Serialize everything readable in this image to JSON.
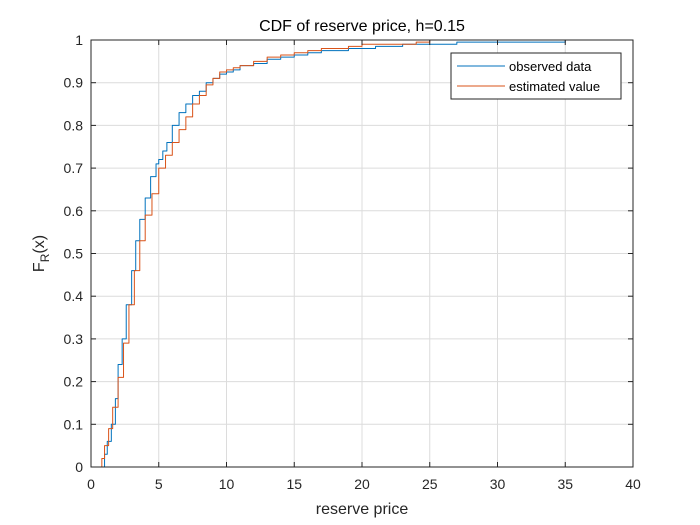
{
  "chart_data": {
    "type": "line",
    "title": "CDF of reserve price, h=0.15",
    "xlabel": "reserve price",
    "ylabel": "F",
    "ylabel_sub": "R",
    "ylabel_arg": "(x)",
    "xlim": [
      0,
      40
    ],
    "ylim": [
      0,
      1
    ],
    "xticks": [
      "0",
      "5",
      "10",
      "15",
      "20",
      "25",
      "30",
      "35",
      "40"
    ],
    "yticks": [
      "0",
      "0.1",
      "0.2",
      "0.3",
      "0.4",
      "0.5",
      "0.6",
      "0.7",
      "0.8",
      "0.9",
      "1"
    ],
    "grid": true,
    "legend_position": "top-right",
    "series": [
      {
        "name": "observed data",
        "color": "#0072BD",
        "x": [
          0.3,
          0.8,
          1.0,
          1.2,
          1.5,
          1.8,
          2.0,
          2.3,
          2.6,
          3.0,
          3.3,
          3.6,
          4.0,
          4.4,
          4.8,
          5.0,
          5.3,
          5.6,
          6.0,
          6.5,
          7.0,
          7.5,
          8.0,
          8.5,
          9.0,
          9.5,
          10.0,
          10.5,
          11.0,
          12.0,
          13.0,
          14.0,
          15.0,
          16.0,
          17.0,
          18.0,
          19.0,
          20.0,
          21.0,
          22.0,
          23.0,
          24.0,
          25.0,
          27.0,
          30.0,
          32.0,
          35.0,
          38.0
        ],
        "y": [
          0.0,
          0.0,
          0.03,
          0.06,
          0.1,
          0.16,
          0.24,
          0.3,
          0.38,
          0.46,
          0.53,
          0.58,
          0.63,
          0.68,
          0.71,
          0.72,
          0.74,
          0.76,
          0.8,
          0.83,
          0.85,
          0.87,
          0.88,
          0.9,
          0.91,
          0.92,
          0.925,
          0.93,
          0.94,
          0.945,
          0.955,
          0.96,
          0.965,
          0.97,
          0.975,
          0.975,
          0.98,
          0.98,
          0.985,
          0.985,
          0.99,
          0.99,
          0.99,
          0.995,
          0.995,
          0.995,
          1.0,
          1.0
        ]
      },
      {
        "name": "estimated value",
        "color": "#D95319",
        "x": [
          0.0,
          0.5,
          0.8,
          1.0,
          1.3,
          1.6,
          2.0,
          2.4,
          2.8,
          3.2,
          3.6,
          4.0,
          4.5,
          5.0,
          5.5,
          6.0,
          6.5,
          7.0,
          7.5,
          8.0,
          8.5,
          9.0,
          9.5,
          10.0,
          10.5,
          11.0,
          12.0,
          13.0,
          14.0,
          15.0,
          16.0,
          17.0,
          18.0,
          19.0,
          20.0,
          21.0,
          22.0,
          23.0,
          24.0,
          25.0,
          28.0,
          31.0,
          34.0,
          38.0
        ],
        "y": [
          0.0,
          0.0,
          0.02,
          0.05,
          0.09,
          0.14,
          0.21,
          0.29,
          0.38,
          0.46,
          0.53,
          0.59,
          0.64,
          0.7,
          0.73,
          0.76,
          0.79,
          0.82,
          0.85,
          0.87,
          0.895,
          0.91,
          0.925,
          0.93,
          0.935,
          0.94,
          0.95,
          0.96,
          0.965,
          0.97,
          0.975,
          0.98,
          0.98,
          0.985,
          0.99,
          0.99,
          0.99,
          0.99,
          0.995,
          1.0,
          1.0,
          1.0,
          1.0,
          1.0
        ]
      }
    ]
  }
}
